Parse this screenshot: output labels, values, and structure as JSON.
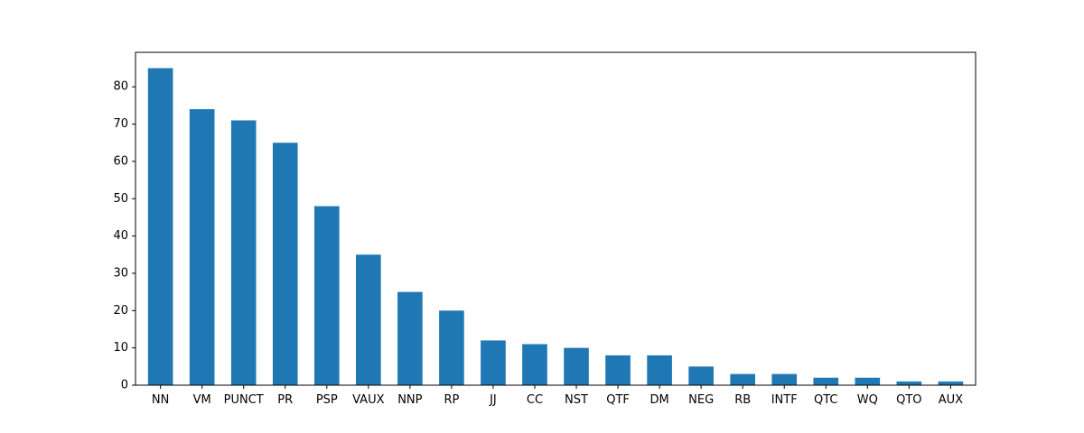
{
  "chart_data": {
    "type": "bar",
    "title": "",
    "xlabel": "",
    "ylabel": "",
    "categories": [
      "NN",
      "VM",
      "PUNCT",
      "PR",
      "PSP",
      "VAUX",
      "NNP",
      "RP",
      "JJ",
      "CC",
      "NST",
      "QTF",
      "DM",
      "NEG",
      "RB",
      "INTF",
      "QTC",
      "WQ",
      "QTO",
      "AUX"
    ],
    "values": [
      85,
      74,
      71,
      65,
      48,
      35,
      25,
      20,
      12,
      11,
      10,
      8,
      8,
      5,
      3,
      3,
      2,
      2,
      1,
      1
    ],
    "ylim": [
      0,
      89.25
    ],
    "yticks": [
      0,
      10,
      20,
      30,
      40,
      50,
      60,
      70,
      80
    ],
    "grid": false,
    "bar_color": "#1f77b4"
  }
}
